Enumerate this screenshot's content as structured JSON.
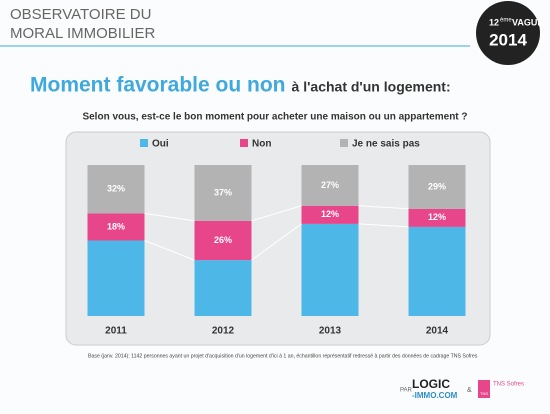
{
  "header": {
    "line1": "OBSERVATOIRE DU",
    "line2": "MORAL IMMOBILIER",
    "badge_number": "12",
    "badge_suffix": "ème",
    "badge_word": "VAGUE",
    "badge_year": "2014"
  },
  "chart_data": {
    "type": "stacked-bar",
    "title": "Moment favorable ou non",
    "title_suffix": "à l'achat d'un logement:",
    "subtitle": "Selon vous, est-ce le bon moment pour acheter une maison ou un appartement ?",
    "categories": [
      "2011",
      "2012",
      "2013",
      "2014"
    ],
    "series": [
      {
        "name": "Oui",
        "color": "#4db8e8",
        "values": [
          50,
          37,
          61,
          59
        ]
      },
      {
        "name": "Non",
        "color": "#e8468a",
        "values": [
          18,
          26,
          12,
          12
        ],
        "value_labels": [
          "18%",
          "26%",
          "12%",
          "12%"
        ]
      },
      {
        "name": "Je ne sais pas",
        "color": "#b3b3b3",
        "values": [
          32,
          37,
          27,
          29
        ],
        "value_labels": [
          "32%",
          "37%",
          "27%",
          "29%"
        ]
      }
    ],
    "ylim": [
      0,
      100
    ],
    "legend": "top",
    "note": "Base (janv. 2014): 1142 personnes ayant un projet d'acquisition d'un logement d'ici à 1 an, échantillon représentatif redressé à partir des données de cadrage TNS Sofres"
  },
  "footer": {
    "by": "PAR",
    "logo1_top": "LOGIC",
    "logo1_bottom": "-IMMO.COM",
    "and": "&",
    "logo2": "TNS Sofres",
    "logo2_mark": "TNS"
  }
}
